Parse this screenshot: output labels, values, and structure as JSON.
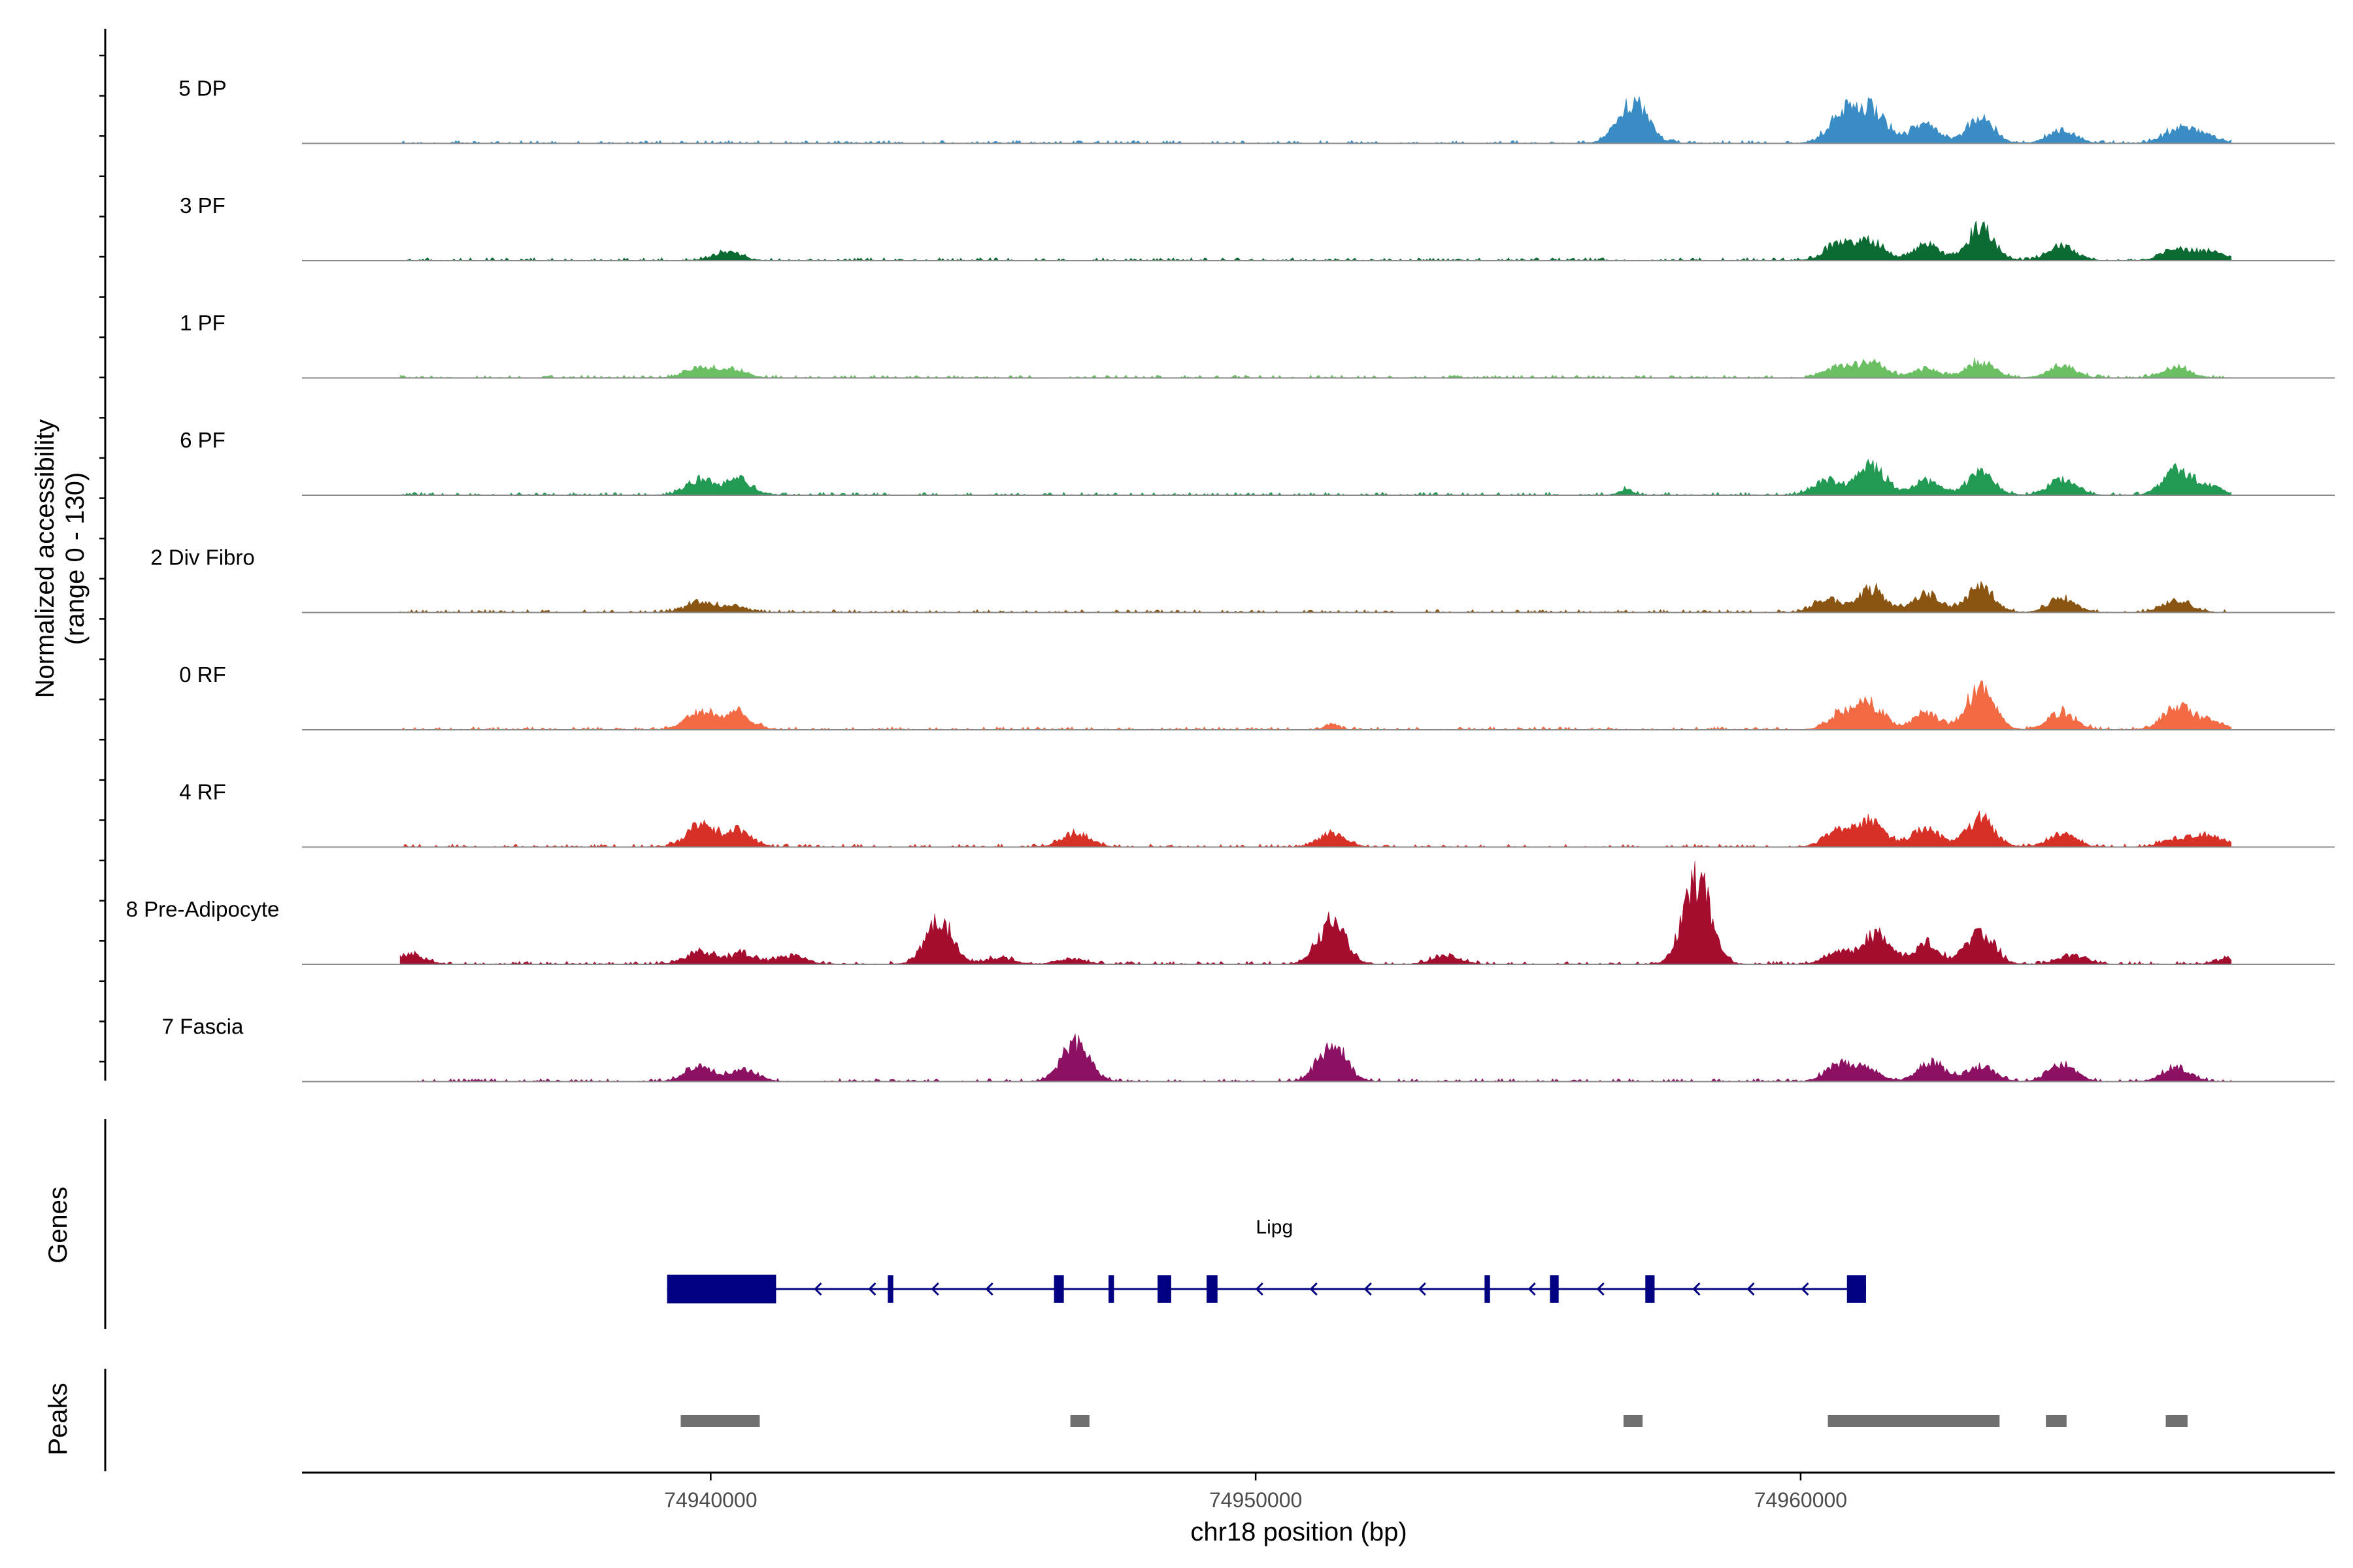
{
  "chart_data": {
    "type": "area",
    "title": "",
    "xlabel": "chr18 position (bp)",
    "ylabel_line1": "Normalized accessibility",
    "ylabel_line2": "(range 0 - 130)",
    "ylim": [
      0,
      130
    ],
    "xlim": [
      74932500,
      74969800
    ],
    "x_ticks": [
      74940000,
      74950000,
      74960000
    ],
    "x_tick_labels": [
      "74940000",
      "74950000",
      "74960000"
    ],
    "tracks": [
      {
        "name": "5 DP",
        "color": "#3A8DC4",
        "peaks": [
          [
            74956850,
            28,
            1
          ],
          [
            74957050,
            14,
            1
          ],
          [
            74960700,
            16,
            1
          ],
          [
            74961000,
            20,
            1
          ],
          [
            74961400,
            24,
            1
          ],
          [
            74962300,
            18,
            1
          ],
          [
            74963300,
            22,
            1
          ],
          [
            74964800,
            12,
            1
          ],
          [
            74966900,
            12,
            1
          ],
          [
            74967400,
            8,
            1
          ]
        ]
      },
      {
        "name": "3 PF",
        "color": "#0B6B33",
        "peaks": [
          [
            74940300,
            8,
            1
          ],
          [
            74960700,
            15,
            1
          ],
          [
            74961300,
            18,
            1
          ],
          [
            74962300,
            14,
            1
          ],
          [
            74963300,
            30,
            1
          ],
          [
            74964800,
            13,
            1
          ],
          [
            74966900,
            11,
            1
          ],
          [
            74967500,
            8,
            1
          ]
        ]
      },
      {
        "name": "1 PF",
        "color": "#6BBF63",
        "peaks": [
          [
            74939800,
            9,
            1
          ],
          [
            74940400,
            7,
            1
          ],
          [
            74960700,
            10,
            1
          ],
          [
            74961300,
            14,
            1
          ],
          [
            74962300,
            8,
            1
          ],
          [
            74963300,
            15,
            1
          ],
          [
            74964800,
            10,
            1
          ],
          [
            74966900,
            10,
            1
          ]
        ]
      },
      {
        "name": "6 PF",
        "color": "#229A54",
        "peaks": [
          [
            74939800,
            14,
            1
          ],
          [
            74940500,
            14,
            1
          ],
          [
            74956800,
            5,
            0.5
          ],
          [
            74960500,
            14,
            1
          ],
          [
            74961300,
            27,
            1
          ],
          [
            74962300,
            13,
            1
          ],
          [
            74963300,
            20,
            1
          ],
          [
            74964800,
            14,
            1
          ],
          [
            74966900,
            24,
            1
          ],
          [
            74967500,
            8,
            1
          ]
        ]
      },
      {
        "name": "2 Div Fibro",
        "color": "#8A5512",
        "peaks": [
          [
            74939800,
            9,
            1
          ],
          [
            74940400,
            5,
            1
          ],
          [
            74960500,
            12,
            1
          ],
          [
            74961300,
            21,
            1
          ],
          [
            74962300,
            17,
            1
          ],
          [
            74963300,
            23,
            1
          ],
          [
            74964800,
            12,
            1
          ],
          [
            74966900,
            11,
            1
          ]
        ]
      },
      {
        "name": "0 RF",
        "color": "#F26B45",
        "peaks": [
          [
            74939800,
            17,
            1
          ],
          [
            74940500,
            15,
            1
          ],
          [
            74951400,
            5,
            0.5
          ],
          [
            74960800,
            16,
            1
          ],
          [
            74961300,
            21,
            1
          ],
          [
            74962300,
            15,
            1
          ],
          [
            74963300,
            38,
            1
          ],
          [
            74964800,
            16,
            1
          ],
          [
            74966900,
            22,
            1
          ],
          [
            74967500,
            8,
            1
          ]
        ]
      },
      {
        "name": "4 RF",
        "color": "#D73027",
        "peaks": [
          [
            74939800,
            20,
            1
          ],
          [
            74940500,
            15,
            1
          ],
          [
            74946700,
            13,
            1
          ],
          [
            74951400,
            12,
            1
          ],
          [
            74960700,
            16,
            1
          ],
          [
            74961300,
            24,
            1
          ],
          [
            74962300,
            17,
            1
          ],
          [
            74963300,
            27,
            1
          ],
          [
            74964800,
            12,
            1
          ],
          [
            74966900,
            8,
            1
          ],
          [
            74967500,
            10,
            1
          ]
        ]
      },
      {
        "name": "8 Pre-Adipocyte",
        "color": "#A50D2F",
        "peaks": [
          [
            74934500,
            9,
            1
          ],
          [
            74939800,
            12,
            1
          ],
          [
            74940600,
            10,
            1
          ],
          [
            74941500,
            8,
            1
          ],
          [
            74944200,
            40,
            1
          ],
          [
            74945300,
            6,
            1
          ],
          [
            74946600,
            5,
            1
          ],
          [
            74951400,
            40,
            1
          ],
          [
            74953500,
            8,
            1
          ],
          [
            74958100,
            78,
            1
          ],
          [
            74960700,
            12,
            1
          ],
          [
            74961400,
            28,
            1
          ],
          [
            74962300,
            18,
            1
          ],
          [
            74963300,
            30,
            1
          ],
          [
            74965000,
            8,
            1
          ],
          [
            74967900,
            5,
            1
          ]
        ]
      },
      {
        "name": "7 Fascia",
        "color": "#8C1163",
        "peaks": [
          [
            74939800,
            15,
            1
          ],
          [
            74940600,
            11,
            1
          ],
          [
            74946700,
            37,
            1
          ],
          [
            74951400,
            33,
            1
          ],
          [
            74960700,
            14,
            1
          ],
          [
            74961200,
            11,
            1
          ],
          [
            74962400,
            18,
            1
          ],
          [
            74963300,
            14,
            1
          ],
          [
            74964800,
            16,
            1
          ],
          [
            74966900,
            13,
            1
          ]
        ]
      }
    ],
    "genes_label": "Genes",
    "gene": {
      "name": "Lipg",
      "strand": "-",
      "color": "#000080",
      "start": 74939200,
      "end": 74961200,
      "exons": [
        [
          74939200,
          74941200
        ],
        [
          74943250,
          74943350
        ],
        [
          74946300,
          74946480
        ],
        [
          74947300,
          74947400
        ],
        [
          74948200,
          74948450
        ],
        [
          74949100,
          74949300
        ],
        [
          74954200,
          74954300
        ],
        [
          74955400,
          74955560
        ],
        [
          74957150,
          74957320
        ],
        [
          74960850,
          74961200
        ]
      ]
    },
    "peaks_label": "Peaks",
    "peak_regions": [
      [
        74939450,
        74940900
      ],
      [
        74946600,
        74946950
      ],
      [
        74956750,
        74957100
      ],
      [
        74960500,
        74963650
      ],
      [
        74964500,
        74964880
      ],
      [
        74966700,
        74967100
      ]
    ]
  }
}
